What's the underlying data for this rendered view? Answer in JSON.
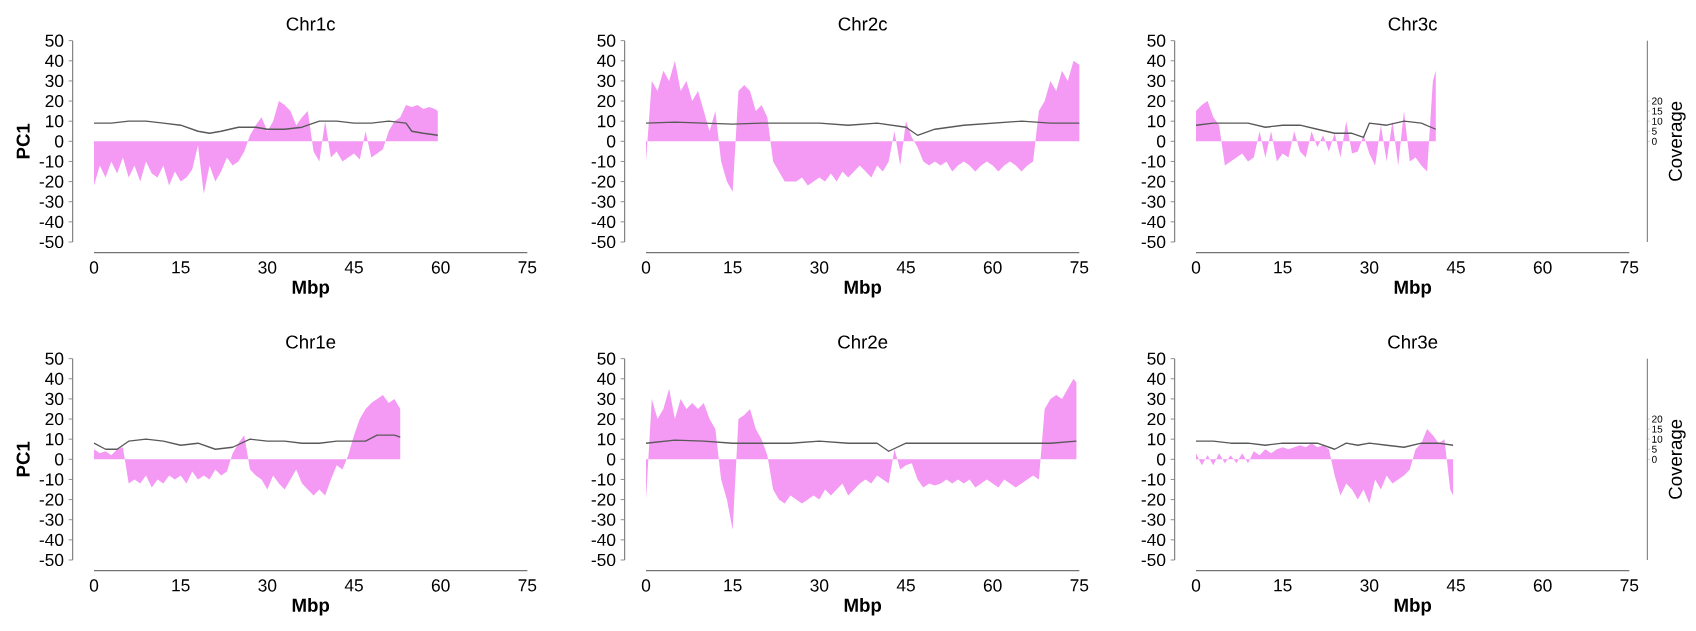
{
  "chart_data": [
    {
      "type": "area",
      "title": "Chr1c",
      "xlabel": "Mbp",
      "ylabel": "PC1",
      "xlim": [
        0,
        75
      ],
      "xticks": [
        0,
        15,
        30,
        45,
        60,
        75
      ],
      "ylim": [
        -50,
        50
      ],
      "yticks": [
        -50,
        -40,
        -30,
        -20,
        -10,
        0,
        10,
        20,
        30,
        40,
        50
      ],
      "series": [
        {
          "color": "#f49af4",
          "x": [
            0,
            1,
            2,
            3,
            4,
            5,
            6,
            7,
            8,
            9,
            10,
            11,
            12,
            13,
            14,
            15,
            16,
            17,
            18,
            19,
            20,
            21,
            22,
            23,
            24,
            25,
            26,
            27,
            28,
            29,
            30,
            31,
            32,
            33,
            34,
            35,
            36,
            37,
            38,
            39,
            40,
            41,
            42,
            43,
            44,
            45,
            46,
            47,
            48,
            49,
            50,
            51,
            52,
            53,
            54,
            55,
            56,
            57,
            58,
            59,
            59.5
          ],
          "values": [
            -22,
            -12,
            -18,
            -10,
            -16,
            -8,
            -18,
            -12,
            -20,
            -10,
            -16,
            -18,
            -12,
            -22,
            -15,
            -20,
            -18,
            -14,
            -2,
            -26,
            -12,
            -20,
            -15,
            -8,
            -12,
            -10,
            -5,
            3,
            8,
            12,
            5,
            10,
            20,
            18,
            15,
            8,
            12,
            15,
            -5,
            -10,
            10,
            -8,
            -5,
            -10,
            -8,
            -6,
            -9,
            5,
            -8,
            -6,
            -4,
            5,
            10,
            12,
            18,
            17,
            18,
            16,
            17,
            16,
            15
          ]
        },
        {
          "type": "line",
          "color": "#595959",
          "x": [
            0,
            3,
            6,
            9,
            12,
            15,
            18,
            20,
            22,
            25,
            28,
            30,
            33,
            36,
            39,
            42,
            45,
            48,
            51,
            54,
            55,
            57,
            59.5
          ],
          "values": [
            9,
            9,
            10,
            10,
            9,
            8,
            5,
            4,
            5,
            7,
            7,
            6,
            6,
            7,
            10,
            10,
            9,
            9,
            10,
            9,
            5,
            4,
            3
          ]
        }
      ]
    },
    {
      "type": "area",
      "title": "Chr2c",
      "xlabel": "Mbp",
      "xlim": [
        0,
        75
      ],
      "xticks": [
        0,
        15,
        30,
        45,
        60,
        75
      ],
      "ylim": [
        -50,
        50
      ],
      "yticks": [
        -50,
        -40,
        -30,
        -20,
        -10,
        0,
        10,
        20,
        30,
        40,
        50
      ],
      "series": [
        {
          "color": "#f49af4",
          "x": [
            0,
            1,
            2,
            3,
            4,
            5,
            6,
            7,
            8,
            9,
            10,
            11,
            12,
            13,
            14,
            15,
            16,
            17,
            18,
            19,
            20,
            21,
            22,
            23,
            24,
            25,
            26,
            27,
            28,
            29,
            30,
            31,
            32,
            33,
            34,
            35,
            36,
            37,
            38,
            39,
            40,
            41,
            42,
            43,
            44,
            45,
            46,
            47,
            48,
            49,
            50,
            51,
            52,
            53,
            54,
            55,
            56,
            57,
            58,
            59,
            60,
            61,
            62,
            63,
            64,
            65,
            66,
            67,
            68,
            69,
            70,
            71,
            72,
            73,
            74,
            75
          ],
          "values": [
            -10,
            30,
            25,
            35,
            30,
            40,
            25,
            30,
            20,
            25,
            15,
            5,
            15,
            -10,
            -20,
            -25,
            25,
            28,
            25,
            15,
            18,
            12,
            -10,
            -15,
            -20,
            -20,
            -20,
            -18,
            -22,
            -20,
            -18,
            -20,
            -16,
            -20,
            -15,
            -18,
            -15,
            -12,
            -15,
            -18,
            -12,
            -15,
            -10,
            5,
            -12,
            10,
            2,
            -3,
            -10,
            -12,
            -10,
            -12,
            -10,
            -15,
            -12,
            -10,
            -12,
            -15,
            -12,
            -10,
            -12,
            -15,
            -12,
            -10,
            -12,
            -15,
            -12,
            -10,
            15,
            20,
            30,
            25,
            35,
            30,
            40,
            38
          ]
        },
        {
          "type": "line",
          "color": "#595959",
          "x": [
            0,
            5,
            10,
            15,
            20,
            25,
            30,
            35,
            40,
            45,
            47,
            50,
            55,
            60,
            65,
            70,
            75
          ],
          "values": [
            9,
            9.5,
            9,
            8.5,
            9,
            9,
            9,
            8,
            9,
            7,
            3,
            6,
            8,
            9,
            10,
            9,
            9
          ]
        }
      ]
    },
    {
      "type": "area",
      "title": "Chr3c",
      "xlabel": "Mbp",
      "y2label": "Coverage",
      "xlim": [
        0,
        75
      ],
      "xticks": [
        0,
        15,
        30,
        45,
        60,
        75
      ],
      "ylim": [
        -50,
        50
      ],
      "yticks": [
        -50,
        -40,
        -30,
        -20,
        -10,
        0,
        10,
        20,
        30,
        40,
        50
      ],
      "y2lim": [
        -50,
        50
      ],
      "y2ticks": [
        0,
        5,
        10,
        15,
        20
      ],
      "series": [
        {
          "color": "#f49af4",
          "x": [
            0,
            1,
            2,
            3,
            4,
            5,
            6,
            7,
            8,
            9,
            10,
            11,
            12,
            13,
            14,
            15,
            16,
            17,
            18,
            19,
            20,
            21,
            22,
            23,
            24,
            25,
            26,
            27,
            28,
            29,
            30,
            31,
            32,
            33,
            34,
            35,
            36,
            37,
            38,
            39,
            40,
            41,
            41.5
          ],
          "values": [
            15,
            18,
            20,
            12,
            8,
            -12,
            -10,
            -8,
            -6,
            -10,
            -8,
            5,
            -8,
            5,
            -10,
            -6,
            -8,
            5,
            -5,
            -8,
            5,
            -3,
            3,
            -5,
            4,
            -8,
            10,
            -6,
            -5,
            3,
            -6,
            -12,
            8,
            -10,
            10,
            -12,
            15,
            -10,
            -8,
            -12,
            -15,
            30,
            35
          ]
        },
        {
          "type": "line",
          "color": "#595959",
          "axis": "y2",
          "x": [
            0,
            3,
            6,
            9,
            12,
            15,
            18,
            21,
            24,
            27,
            29,
            30,
            33,
            36,
            39,
            41.5
          ],
          "values": [
            8,
            9,
            9,
            9,
            7,
            8,
            8,
            6,
            4,
            4,
            2,
            9,
            8,
            10,
            9,
            6
          ]
        }
      ]
    },
    {
      "type": "area",
      "title": "Chr1e",
      "xlabel": "Mbp",
      "ylabel": "PC1",
      "xlim": [
        0,
        75
      ],
      "xticks": [
        0,
        15,
        30,
        45,
        60,
        75
      ],
      "ylim": [
        -50,
        50
      ],
      "yticks": [
        -50,
        -40,
        -30,
        -20,
        -10,
        0,
        10,
        20,
        30,
        40,
        50
      ],
      "series": [
        {
          "color": "#f49af4",
          "x": [
            0,
            1,
            2,
            3,
            4,
            5,
            6,
            7,
            8,
            9,
            10,
            11,
            12,
            13,
            14,
            15,
            16,
            17,
            18,
            19,
            20,
            21,
            22,
            23,
            24,
            25,
            26,
            27,
            28,
            29,
            30,
            31,
            32,
            33,
            34,
            35,
            36,
            37,
            38,
            39,
            40,
            41,
            42,
            43,
            44,
            45,
            46,
            47,
            48,
            49,
            50,
            51,
            52,
            53
          ],
          "values": [
            5,
            3,
            4,
            2,
            5,
            6,
            -12,
            -10,
            -12,
            -8,
            -14,
            -10,
            -12,
            -8,
            -10,
            -8,
            -12,
            -6,
            -10,
            -8,
            -10,
            -5,
            -8,
            -6,
            3,
            8,
            12,
            -5,
            -8,
            -10,
            -15,
            -8,
            -12,
            -15,
            -10,
            -5,
            -12,
            -15,
            -18,
            -15,
            -18,
            -10,
            -3,
            -5,
            2,
            12,
            20,
            25,
            28,
            30,
            32,
            28,
            30,
            25
          ]
        },
        {
          "type": "line",
          "color": "#595959",
          "x": [
            0,
            2,
            4,
            6,
            9,
            12,
            15,
            18,
            21,
            24,
            27,
            30,
            33,
            36,
            39,
            42,
            45,
            47,
            49,
            52,
            53
          ],
          "values": [
            8,
            5,
            5,
            9,
            10,
            9,
            7,
            8,
            5,
            6,
            10,
            9,
            9,
            8,
            8,
            9,
            9,
            9,
            12,
            12,
            11
          ]
        }
      ]
    },
    {
      "type": "area",
      "title": "Chr2e",
      "xlabel": "Mbp",
      "xlim": [
        0,
        75
      ],
      "xticks": [
        0,
        15,
        30,
        45,
        60,
        75
      ],
      "ylim": [
        -50,
        50
      ],
      "yticks": [
        -50,
        -40,
        -30,
        -20,
        -10,
        0,
        10,
        20,
        30,
        40,
        50
      ],
      "series": [
        {
          "color": "#f49af4",
          "x": [
            0,
            1,
            2,
            3,
            4,
            5,
            6,
            7,
            8,
            9,
            10,
            11,
            12,
            13,
            14,
            15,
            16,
            17,
            18,
            19,
            20,
            21,
            22,
            23,
            24,
            25,
            26,
            27,
            28,
            29,
            30,
            31,
            32,
            33,
            34,
            35,
            36,
            37,
            38,
            39,
            40,
            41,
            42,
            43,
            44,
            45,
            46,
            47,
            48,
            49,
            50,
            51,
            52,
            53,
            54,
            55,
            56,
            57,
            58,
            59,
            60,
            61,
            62,
            63,
            64,
            65,
            66,
            67,
            68,
            69,
            70,
            71,
            72,
            73,
            74,
            74.5
          ],
          "values": [
            -20,
            30,
            20,
            25,
            35,
            20,
            30,
            25,
            28,
            25,
            28,
            20,
            15,
            -10,
            -20,
            -35,
            20,
            22,
            25,
            15,
            10,
            2,
            -15,
            -20,
            -22,
            -18,
            -20,
            -22,
            -20,
            -18,
            -20,
            -15,
            -18,
            -15,
            -12,
            -18,
            -15,
            -12,
            -10,
            -12,
            -8,
            -10,
            -12,
            5,
            -5,
            -3,
            -2,
            -10,
            -14,
            -12,
            -13,
            -12,
            -10,
            -12,
            -10,
            -12,
            -10,
            -14,
            -12,
            -10,
            -12,
            -14,
            -10,
            -12,
            -14,
            -12,
            -10,
            -8,
            -10,
            25,
            30,
            32,
            30,
            35,
            40,
            38
          ]
        },
        {
          "type": "line",
          "color": "#595959",
          "x": [
            0,
            5,
            10,
            15,
            20,
            25,
            30,
            35,
            40,
            42,
            45,
            50,
            55,
            60,
            65,
            70,
            74.5
          ],
          "values": [
            8,
            9.5,
            9,
            8,
            8,
            8,
            9,
            8,
            8,
            4,
            8,
            8,
            8,
            8,
            8,
            8,
            9
          ]
        }
      ]
    },
    {
      "type": "area",
      "title": "Chr3e",
      "xlabel": "Mbp",
      "y2label": "Coverage",
      "xlim": [
        0,
        75
      ],
      "xticks": [
        0,
        15,
        30,
        45,
        60,
        75
      ],
      "ylim": [
        -50,
        50
      ],
      "yticks": [
        -50,
        -40,
        -30,
        -20,
        -10,
        0,
        10,
        20,
        30,
        40,
        50
      ],
      "y2lim": [
        -50,
        50
      ],
      "y2ticks": [
        0,
        5,
        10,
        15,
        20
      ],
      "series": [
        {
          "color": "#f49af4",
          "x": [
            0,
            1,
            2,
            3,
            4,
            5,
            6,
            7,
            8,
            9,
            10,
            11,
            12,
            13,
            14,
            15,
            16,
            17,
            18,
            19,
            20,
            21,
            22,
            23,
            24,
            25,
            26,
            27,
            28,
            29,
            30,
            31,
            32,
            33,
            34,
            35,
            36,
            37,
            38,
            39,
            40,
            41,
            42,
            43,
            44,
            44.5
          ],
          "values": [
            3,
            -3,
            2,
            -3,
            3,
            -2,
            2,
            -2,
            3,
            -2,
            4,
            2,
            5,
            3,
            5,
            6,
            5,
            6,
            7,
            6,
            8,
            6,
            7,
            5,
            -8,
            -18,
            -12,
            -15,
            -20,
            -15,
            -22,
            -10,
            -15,
            -8,
            -12,
            -10,
            -8,
            -5,
            5,
            8,
            15,
            12,
            8,
            10,
            -15,
            -18
          ]
        },
        {
          "type": "line",
          "color": "#595959",
          "axis": "y2",
          "x": [
            0,
            3,
            6,
            9,
            12,
            15,
            18,
            21,
            24,
            26,
            28,
            30,
            33,
            36,
            39,
            42,
            44.5
          ],
          "values": [
            9,
            9,
            8,
            8,
            7,
            8,
            8,
            8,
            5,
            8,
            7,
            8,
            7,
            6,
            8,
            8,
            7
          ]
        }
      ]
    }
  ]
}
